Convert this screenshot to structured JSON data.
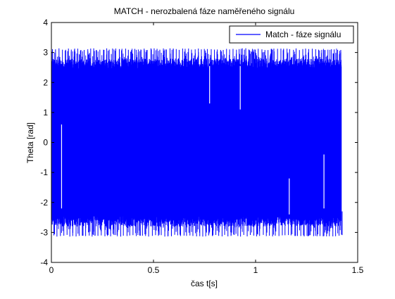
{
  "chart_data": {
    "type": "line",
    "title": "MATCH - nerozbalená fáze naměřeného signálu",
    "xlabel": "čas t[s]",
    "ylabel": "Theta [rad]",
    "xlim": [
      0,
      1.5
    ],
    "ylim": [
      -4,
      4
    ],
    "xticks": [
      0,
      0.5,
      1,
      1.5
    ],
    "xtick_labels": [
      "0",
      "0.5",
      "1",
      "1.5"
    ],
    "yticks": [
      -4,
      -3,
      -2,
      -1,
      0,
      1,
      2,
      3,
      4
    ],
    "ytick_labels": [
      "-4",
      "-3",
      "-2",
      "-1",
      "0",
      "1",
      "2",
      "3",
      "4"
    ],
    "grid": false,
    "legend_position": "top-right",
    "series": [
      {
        "name": "Match - fáze signálu",
        "color": "#0000ff",
        "x_range": [
          0,
          1.42
        ],
        "value_range": [
          -3.14,
          3.14
        ],
        "description_points": [
          {
            "x": 0.04,
            "y": 1.15
          },
          {
            "x": 0.05,
            "y": -2.3
          },
          {
            "x": 0.77,
            "y": 1.2
          },
          {
            "x": 0.92,
            "y": 1.0
          },
          {
            "x": 1.16,
            "y": -1.1
          },
          {
            "x": 1.31,
            "y": -0.3
          },
          {
            "x": 1.33,
            "y": -1.2
          },
          {
            "x": 1.35,
            "y": -2.0
          }
        ]
      }
    ]
  }
}
